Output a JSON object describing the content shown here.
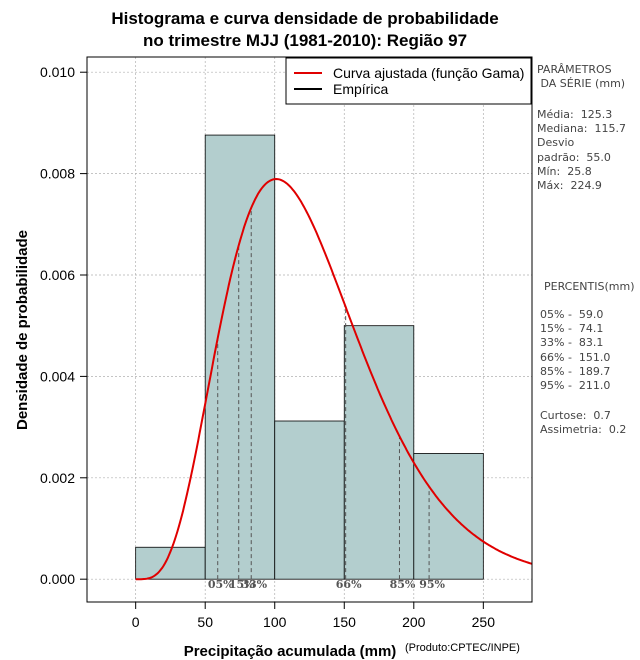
{
  "chart_data": {
    "type": "bar",
    "title_line1": "Histograma e curva densidade de probabilidade",
    "title_line2": "no trimestre MJJ (1981-2010): Região 97",
    "xlabel": "Precipitação acumulada (mm)",
    "ylabel": "Densidade de probabilidade",
    "source_note": "(Produto:CPTEC/INPE)",
    "xlim": [
      -35,
      285
    ],
    "ylim": [
      -0.00045,
      0.0103
    ],
    "x_ticks": [
      0,
      50,
      100,
      150,
      200,
      250
    ],
    "y_ticks": [
      0.0,
      0.002,
      0.004,
      0.006,
      0.008,
      0.01
    ],
    "y_tick_labels": [
      "0.000",
      "0.002",
      "0.004",
      "0.006",
      "0.008",
      "0.010"
    ],
    "grid": true,
    "bins": [
      {
        "from": 0,
        "to": 50,
        "density": 0.00063
      },
      {
        "from": 50,
        "to": 100,
        "density": 0.00876
      },
      {
        "from": 100,
        "to": 150,
        "density": 0.00312
      },
      {
        "from": 150,
        "to": 200,
        "density": 0.005
      },
      {
        "from": 200,
        "to": 250,
        "density": 0.00248
      }
    ],
    "gamma_curve": {
      "shape": 5.16,
      "scale": 24.29
    },
    "percentile_marks": [
      {
        "label": "05%",
        "x": 59.0
      },
      {
        "label": "15%",
        "x": 74.1
      },
      {
        "label": "33%",
        "x": 83.1
      },
      {
        "label": "66%",
        "x": 151.0
      },
      {
        "label": "85%",
        "x": 189.7
      },
      {
        "label": "95%",
        "x": 211.0
      }
    ],
    "legend": [
      {
        "label": "Curva ajustada (função Gama)",
        "color": "#e00000"
      },
      {
        "label": "Empírica",
        "color": "#000000"
      }
    ],
    "colors": {
      "bar_fill": "#b3cece",
      "curve": "#e00000",
      "grid": "#b0b0b0",
      "percentile_line": "#555555"
    }
  },
  "side_panel": {
    "params_heading": "PARÂMETROS\n DA SÉRIE (mm)",
    "params_body": "Média:  125.3\nMediana:  115.7\nDesvio\npadrão:  55.0\nMín:  25.8\nMáx:  224.9",
    "percentis_heading": "PERCENTIS(mm)",
    "percentis_body": "05% -  59.0\n15% -  74.1\n33% -  83.1\n66% -  151.0\n85% -  189.7\n95% -  211.0",
    "stats_body": "Curtose:  0.7\nAssimetria:  0.2"
  }
}
